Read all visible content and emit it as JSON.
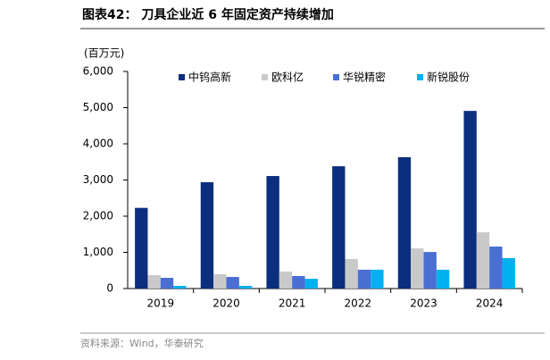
{
  "chart_data": {
    "type": "bar",
    "title": "图表42：  刀具企业近 6 年固定资产持续增加",
    "y_label": "(百万元)",
    "source": "资料来源：Wind，华泰研究",
    "categories": [
      "2019",
      "2020",
      "2021",
      "2022",
      "2023",
      "2024"
    ],
    "series": [
      {
        "name": "中钨高新",
        "color": "#0b2f7d",
        "values": [
          2230,
          2940,
          3110,
          3380,
          3630,
          4910
        ]
      },
      {
        "name": "欧科亿",
        "color": "#c9c9c9",
        "values": [
          370,
          395,
          470,
          815,
          1110,
          1555
        ]
      },
      {
        "name": "华锐精密",
        "color": "#4a6fd3",
        "values": [
          296,
          320,
          345,
          520,
          1010,
          1160
        ]
      },
      {
        "name": "新锐股份",
        "color": "#00b0f0",
        "values": [
          74,
          74,
          270,
          520,
          520,
          840
        ]
      }
    ],
    "ylim": [
      0,
      6000
    ],
    "yticks": [
      0,
      {
        "value": 1000,
        "label": "1,000"
      },
      {
        "value": 2000,
        "label": "2,000"
      },
      {
        "value": 3000,
        "label": "3,000"
      },
      {
        "value": 4000,
        "label": "4,000"
      },
      {
        "value": 5000,
        "label": "5,000"
      },
      {
        "value": 6000,
        "label": "6,000"
      }
    ]
  }
}
